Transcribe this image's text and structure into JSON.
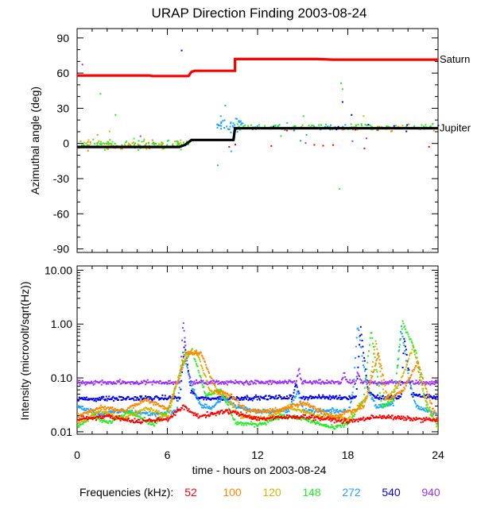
{
  "title": "URAP Direction Finding  2003-08-24",
  "colors": {
    "f52": "#ff0000",
    "f100": "#ff8800",
    "f120": "#d8b400",
    "f148": "#22ee22",
    "f272": "#1aa6ff",
    "f540": "#0000ee",
    "f940": "#9b30ff",
    "saturn": "#ff0000",
    "jupiter": "#000000",
    "axis": "#000000"
  },
  "legend": {
    "label": "Frequencies (kHz):",
    "items": [
      {
        "key": "f52",
        "label": "52"
      },
      {
        "key": "f100",
        "label": "100"
      },
      {
        "key": "f120",
        "label": "120"
      },
      {
        "key": "f148",
        "label": "148"
      },
      {
        "key": "f272",
        "label": "272"
      },
      {
        "key": "f540",
        "label": "540"
      },
      {
        "key": "f940",
        "label": "940"
      }
    ]
  },
  "chart_data": [
    {
      "type": "scatter",
      "title": "URAP Direction Finding  2003-08-24",
      "xlabel": "",
      "ylabel": "Azimuthal angle (deg)",
      "xlim": [
        0,
        24
      ],
      "ylim": [
        -93,
        98
      ],
      "yticks": [
        90,
        60,
        30,
        0,
        -30,
        -60,
        -90
      ],
      "reference_lines": [
        {
          "name": "Saturn",
          "label": "Saturn",
          "color_key": "saturn",
          "points": [
            [
              0,
              58
            ],
            [
              4.8,
              58
            ],
            [
              5,
              57.5
            ],
            [
              7.4,
              57.5
            ],
            [
              7.6,
              61
            ],
            [
              7.8,
              62
            ],
            [
              10.5,
              62
            ],
            [
              10.5,
              72
            ],
            [
              16,
              72
            ],
            [
              17,
              71.5
            ],
            [
              24,
              71.5
            ]
          ]
        },
        {
          "name": "Jupiter",
          "label": "Jupiter",
          "color_key": "jupiter",
          "points": [
            [
              0,
              -3
            ],
            [
              6.8,
              -3
            ],
            [
              7.2,
              -1
            ],
            [
              7.6,
              3
            ],
            [
              8,
              3
            ],
            [
              10.4,
              3
            ],
            [
              10.5,
              13
            ],
            [
              24,
              13
            ]
          ]
        }
      ],
      "series": [
        {
          "name": "52",
          "color_key": "f52",
          "segments": [
            [
              0,
              24,
              -2,
              5,
              12
            ],
            [
              10.5,
              24,
              13,
              3,
              5
            ]
          ],
          "outliers": []
        },
        {
          "name": "100",
          "color_key": "f100",
          "segments": [
            [
              0,
              7,
              -1,
              6,
              30
            ],
            [
              10.5,
              24,
              13,
              3,
              20
            ]
          ],
          "outliers": [
            [
              1.3,
              8
            ],
            [
              22,
              17
            ]
          ]
        },
        {
          "name": "120",
          "color_key": "f120",
          "segments": [
            [
              0,
              7,
              0,
              6,
              35
            ],
            [
              10.5,
              24,
              14,
              3,
              25
            ]
          ],
          "outliers": [
            [
              2.1,
              11
            ],
            [
              19,
              24
            ]
          ]
        },
        {
          "name": "148",
          "color_key": "f148",
          "segments": [
            [
              0,
              7.5,
              0,
              6,
              80
            ],
            [
              10.5,
              24,
              15,
              4,
              80
            ]
          ],
          "outliers": [
            [
              1.5,
              43
            ],
            [
              2.5,
              25
            ],
            [
              17.5,
              52
            ],
            [
              17.6,
              47
            ],
            [
              17.4,
              -38
            ],
            [
              15,
              24
            ],
            [
              13.5,
              7
            ]
          ]
        },
        {
          "name": "272",
          "color_key": "f272",
          "segments": [
            [
              9.2,
              11,
              17,
              8,
              40
            ],
            [
              11,
              18,
              14,
              4,
              30
            ]
          ],
          "outliers": [
            [
              9.5,
              24
            ],
            [
              9.8,
              33
            ],
            [
              14.8,
              3
            ],
            [
              15.2,
              8
            ],
            [
              9.3,
              -18
            ],
            [
              10.2,
              -6
            ]
          ]
        },
        {
          "name": "540",
          "color_key": "f540",
          "segments": [
            [
              16.5,
              24,
              14,
              4,
              15
            ]
          ],
          "outliers": [
            [
              6.9,
              80
            ],
            [
              18.2,
              25
            ],
            [
              13,
              15
            ],
            [
              17.6,
              36
            ]
          ]
        },
        {
          "name": "940",
          "color_key": "f940",
          "segments": [
            [
              0,
              24,
              6,
              12,
              4
            ]
          ],
          "outliers": [
            [
              0.3,
              68
            ]
          ]
        }
      ]
    },
    {
      "type": "line",
      "title": "",
      "xlabel": "time - hours on 2003-08-24",
      "ylabel": "Intensity (microvolt/sqrt(Hz))",
      "yscale": "log",
      "xlim": [
        0,
        24
      ],
      "ylim": [
        0.009,
        12
      ],
      "xticks": [
        0,
        6,
        12,
        18,
        24
      ],
      "yticks": [
        10.0,
        1.0,
        0.1,
        0.01
      ],
      "ytick_labels": [
        "10.00",
        "1.00",
        "0.10",
        "0.01"
      ],
      "series": [
        {
          "name": "940",
          "color_key": "f940",
          "points": [
            [
              0,
              0.085
            ],
            [
              6.8,
              0.085
            ],
            [
              7,
              1.2
            ],
            [
              7.3,
              0.15
            ],
            [
              7.6,
              0.085
            ],
            [
              14.5,
              0.085
            ],
            [
              14.7,
              0.15
            ],
            [
              14.9,
              0.085
            ],
            [
              17.5,
              0.085
            ],
            [
              17.7,
              0.13
            ],
            [
              17.9,
              0.085
            ],
            [
              18.5,
              0.085
            ],
            [
              18.6,
              0.14
            ],
            [
              18.8,
              0.085
            ],
            [
              24,
              0.085
            ]
          ]
        },
        {
          "name": "540",
          "color_key": "f540",
          "points": [
            [
              0,
              0.042
            ],
            [
              6.8,
              0.044
            ],
            [
              7.1,
              0.5
            ],
            [
              7.5,
              0.06
            ],
            [
              8,
              0.043
            ],
            [
              14.3,
              0.045
            ],
            [
              14.5,
              0.08
            ],
            [
              14.8,
              0.045
            ],
            [
              18.5,
              0.045
            ],
            [
              18.8,
              0.9
            ],
            [
              19.3,
              0.06
            ],
            [
              19.8,
              0.045
            ],
            [
              21.5,
              0.045
            ],
            [
              21.7,
              0.6
            ],
            [
              22.2,
              0.05
            ],
            [
              24,
              0.045
            ]
          ]
        },
        {
          "name": "272",
          "color_key": "f272",
          "points": [
            [
              0,
              0.03
            ],
            [
              1.5,
              0.022
            ],
            [
              3,
              0.025
            ],
            [
              5,
              0.022
            ],
            [
              6.6,
              0.025
            ],
            [
              7,
              0.35
            ],
            [
              7.5,
              0.08
            ],
            [
              8.2,
              0.03
            ],
            [
              9,
              0.03
            ],
            [
              9.6,
              0.045
            ],
            [
              10.5,
              0.03
            ],
            [
              12,
              0.025
            ],
            [
              14,
              0.025
            ],
            [
              14.6,
              0.06
            ],
            [
              15,
              0.025
            ],
            [
              18,
              0.025
            ],
            [
              18.3,
              0.06
            ],
            [
              18.6,
              1.0
            ],
            [
              19.2,
              0.08
            ],
            [
              19.8,
              0.03
            ],
            [
              21,
              0.035
            ],
            [
              21.5,
              0.9
            ],
            [
              22,
              0.1
            ],
            [
              22.5,
              0.03
            ],
            [
              24,
              0.022
            ]
          ]
        },
        {
          "name": "148",
          "color_key": "f148",
          "points": [
            [
              0,
              0.013
            ],
            [
              1,
              0.02
            ],
            [
              2,
              0.015
            ],
            [
              3.5,
              0.025
            ],
            [
              5,
              0.014
            ],
            [
              6,
              0.025
            ],
            [
              7,
              0.2
            ],
            [
              7.6,
              0.35
            ],
            [
              8.5,
              0.05
            ],
            [
              9.5,
              0.06
            ],
            [
              10.5,
              0.015
            ],
            [
              12,
              0.014
            ],
            [
              13.5,
              0.02
            ],
            [
              15,
              0.018
            ],
            [
              17,
              0.012
            ],
            [
              18,
              0.015
            ],
            [
              19,
              0.04
            ],
            [
              19.5,
              0.8
            ],
            [
              20.2,
              0.03
            ],
            [
              21,
              0.04
            ],
            [
              21.6,
              1.1
            ],
            [
              22.5,
              0.3
            ],
            [
              23.2,
              0.03
            ],
            [
              24,
              0.012
            ]
          ]
        },
        {
          "name": "120",
          "color_key": "f120",
          "points": [
            [
              0,
              0.015
            ],
            [
              1.5,
              0.025
            ],
            [
              3,
              0.018
            ],
            [
              4.5,
              0.028
            ],
            [
              6,
              0.02
            ],
            [
              7.1,
              0.3
            ],
            [
              7.9,
              0.32
            ],
            [
              8.8,
              0.06
            ],
            [
              9.8,
              0.05
            ],
            [
              10.8,
              0.02
            ],
            [
              12.5,
              0.018
            ],
            [
              14,
              0.03
            ],
            [
              16,
              0.02
            ],
            [
              18,
              0.018
            ],
            [
              19.3,
              0.05
            ],
            [
              19.8,
              0.5
            ],
            [
              20.4,
              0.04
            ],
            [
              21.4,
              0.08
            ],
            [
              22.3,
              0.4
            ],
            [
              23,
              0.05
            ],
            [
              24,
              0.011
            ]
          ]
        },
        {
          "name": "100",
          "color_key": "f100",
          "points": [
            [
              0,
              0.02
            ],
            [
              1.5,
              0.03
            ],
            [
              3,
              0.025
            ],
            [
              4.5,
              0.04
            ],
            [
              6,
              0.028
            ],
            [
              7.3,
              0.3
            ],
            [
              8.2,
              0.3
            ],
            [
              9.2,
              0.06
            ],
            [
              10.2,
              0.05
            ],
            [
              11.2,
              0.025
            ],
            [
              13,
              0.025
            ],
            [
              15,
              0.035
            ],
            [
              17,
              0.02
            ],
            [
              19,
              0.03
            ],
            [
              20,
              0.3
            ],
            [
              20.6,
              0.04
            ],
            [
              21.6,
              0.06
            ],
            [
              22.6,
              0.2
            ],
            [
              23.4,
              0.04
            ],
            [
              24,
              0.015
            ]
          ]
        },
        {
          "name": "52",
          "color_key": "f52",
          "points": [
            [
              0,
              0.018
            ],
            [
              2,
              0.02
            ],
            [
              4,
              0.016
            ],
            [
              6,
              0.018
            ],
            [
              7,
              0.03
            ],
            [
              8,
              0.02
            ],
            [
              10,
              0.025
            ],
            [
              12,
              0.018
            ],
            [
              15,
              0.02
            ],
            [
              18,
              0.016
            ],
            [
              20,
              0.02
            ],
            [
              22,
              0.018
            ],
            [
              24,
              0.017
            ]
          ]
        }
      ]
    }
  ]
}
